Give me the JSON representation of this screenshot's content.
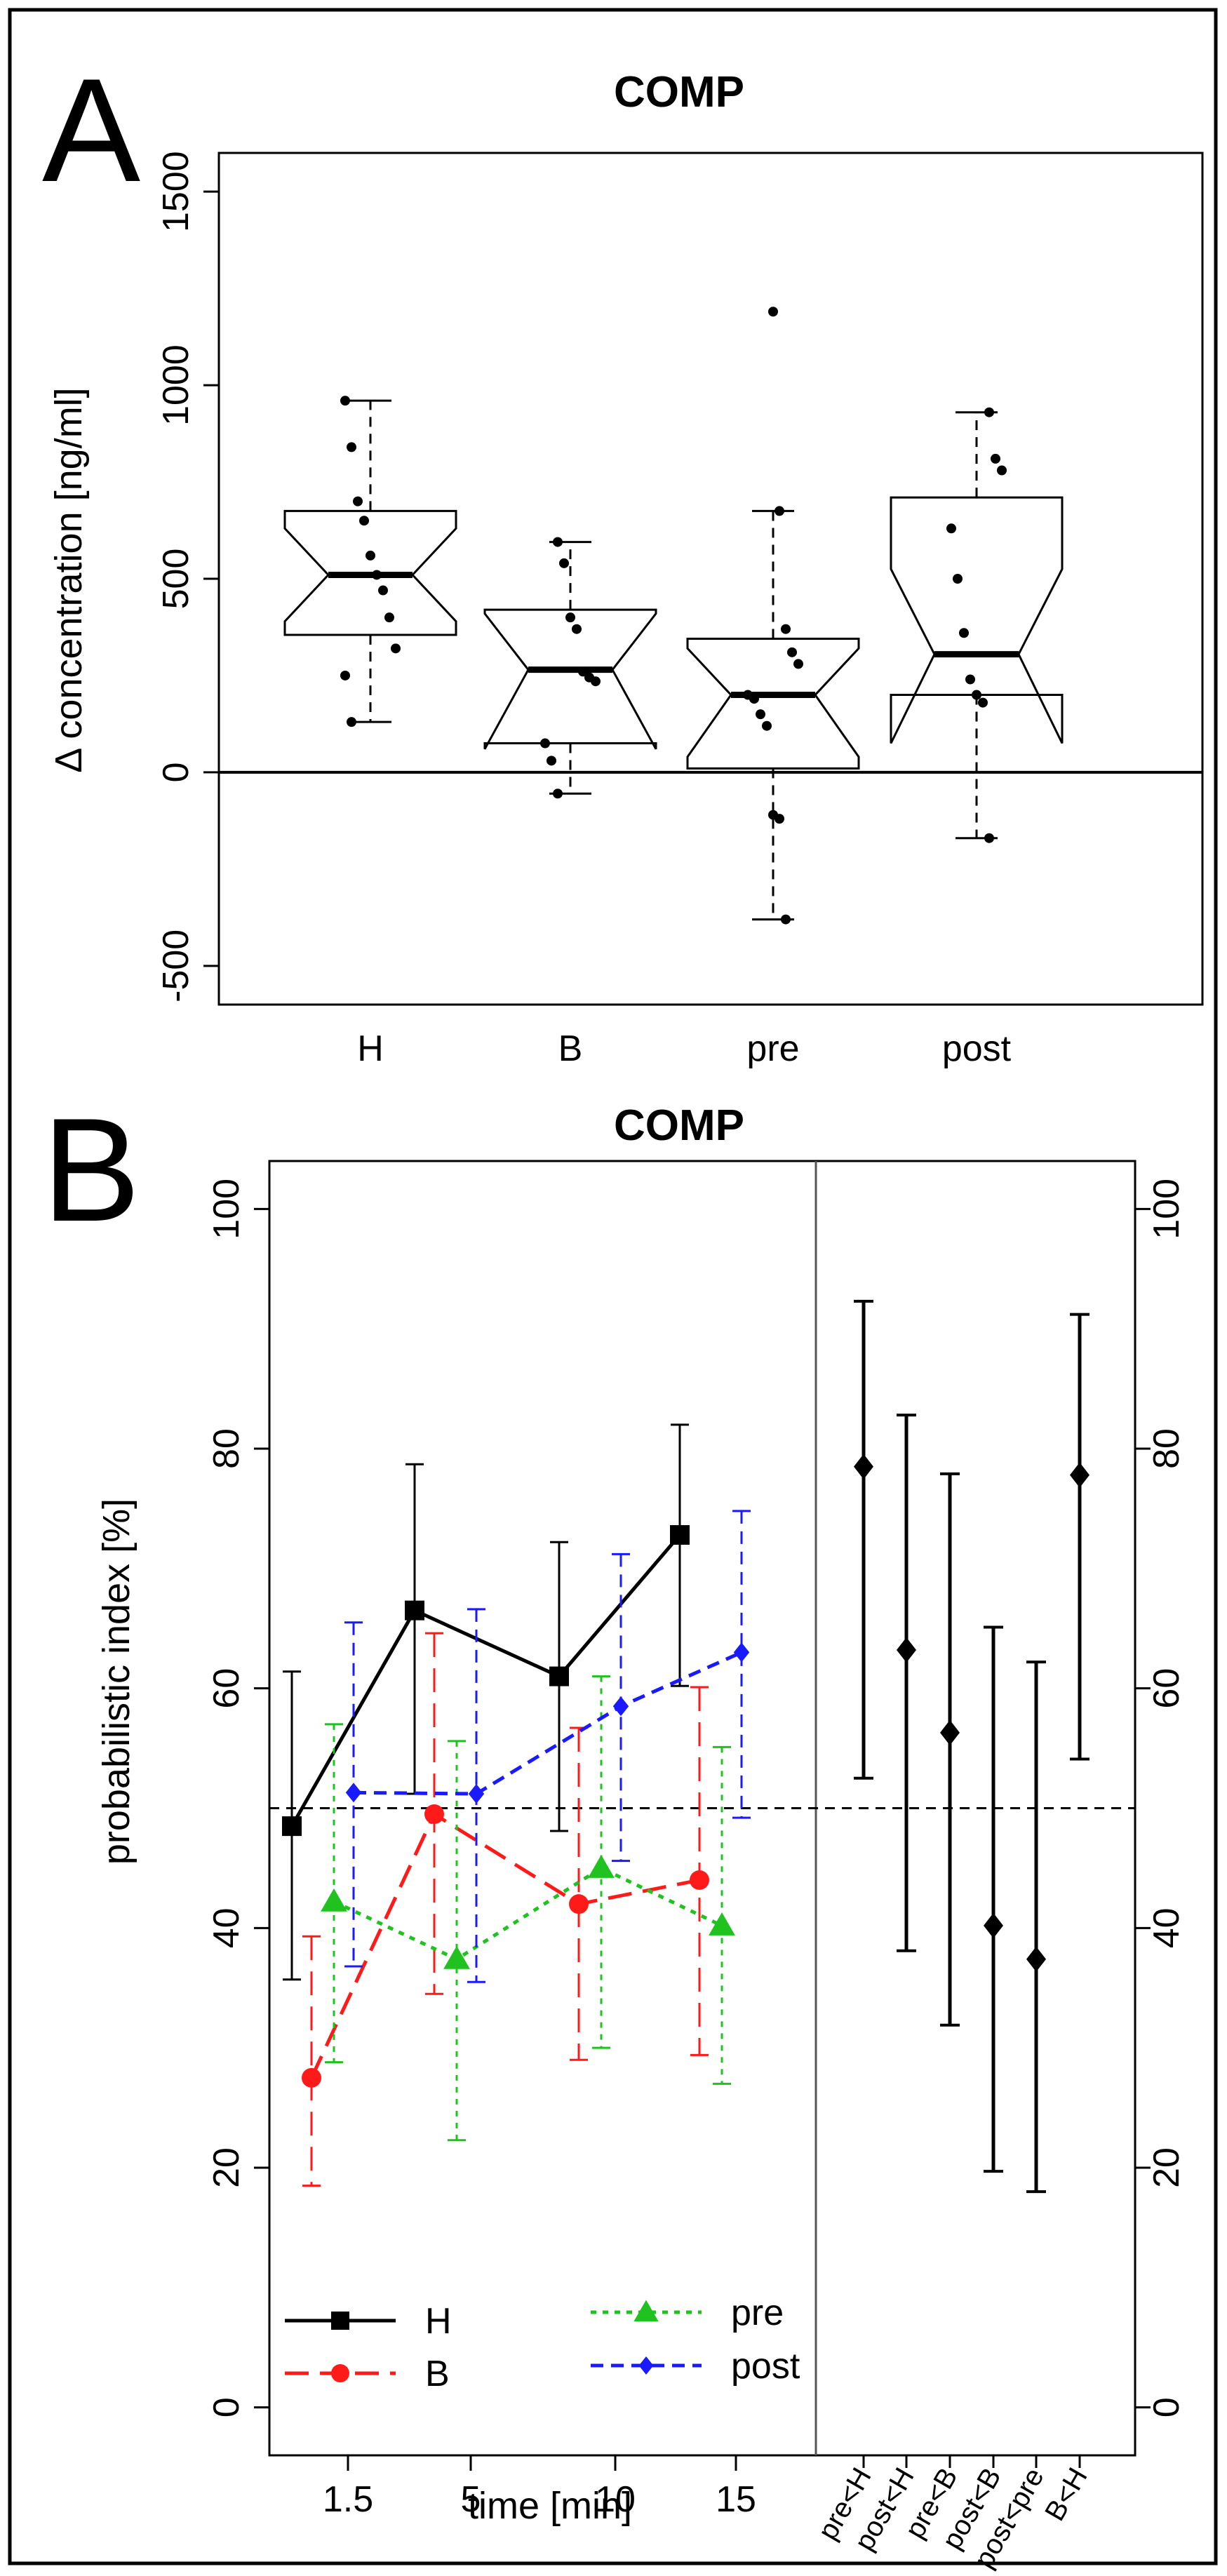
{
  "colors": {
    "H": "#000000",
    "B": "#ff1a1a",
    "pre": "#1fc21f",
    "post": "#1a1aff",
    "comparison": "#000000"
  },
  "chart_data": [
    {
      "panel": "A",
      "type": "box",
      "title": "COMP",
      "xlabel": "",
      "ylabel": "Δ concentration [ng/ml]",
      "ylim": [
        -600,
        1600
      ],
      "yticks": [
        -500,
        0,
        500,
        1000,
        1500
      ],
      "ytick_labels": [
        "-500",
        "0",
        "500",
        "1000",
        "1500"
      ],
      "zero_line": 0,
      "notched": true,
      "categories": [
        "H",
        "B",
        "pre",
        "post"
      ],
      "boxes": [
        {
          "name": "H",
          "whisker_low": 130,
          "q1": 355,
          "notch_low": 390,
          "median": 510,
          "notch_high": 630,
          "q3": 675,
          "whisker_high": 960,
          "points": [
            960,
            840,
            700,
            650,
            560,
            510,
            470,
            400,
            320,
            250,
            130
          ]
        },
        {
          "name": "B",
          "whisker_low": -55,
          "q1": 75,
          "notch_low": 60,
          "median": 265,
          "notch_high": 410,
          "q3": 420,
          "whisker_high": 595,
          "points": [
            595,
            540,
            400,
            370,
            260,
            245,
            235,
            75,
            30,
            -55
          ]
        },
        {
          "name": "pre",
          "whisker_low": -380,
          "q1": 10,
          "notch_low": 40,
          "median": 200,
          "notch_high": 320,
          "q3": 345,
          "whisker_high": 675,
          "points": [
            1190,
            675,
            370,
            310,
            280,
            200,
            190,
            150,
            120,
            -110,
            -120,
            -380
          ]
        },
        {
          "name": "post",
          "whisker_low": -170,
          "q1": 200,
          "notch_low": 75,
          "median": 305,
          "notch_high": 525,
          "q3": 710,
          "whisker_high": 930,
          "points": [
            930,
            810,
            780,
            630,
            500,
            360,
            240,
            200,
            180,
            -170
          ]
        }
      ]
    },
    {
      "panel": "B",
      "type": "line",
      "title": "COMP",
      "xlabel": "time [min]",
      "ylabel": "probabilistic index [%]",
      "ylim": [
        -4,
        104
      ],
      "yticks": [
        0,
        20,
        40,
        60,
        80,
        100
      ],
      "ytick_labels": [
        "0",
        "20",
        "40",
        "60",
        "80",
        "100"
      ],
      "reference_line": 50,
      "x": [
        "1.5",
        "5",
        "10",
        "15"
      ],
      "series": [
        {
          "name": "H",
          "line": "solid",
          "marker": "square",
          "values": [
            48.5,
            66.5,
            61,
            72.8
          ],
          "lower": [
            35.7,
            51.2,
            48.1,
            60.2
          ],
          "upper": [
            61.4,
            78.7,
            72.2,
            82
          ]
        },
        {
          "name": "B",
          "line": "longdash",
          "marker": "circle",
          "values": [
            27.5,
            49.5,
            42,
            44
          ],
          "lower": [
            18.5,
            34.5,
            29,
            29.4
          ],
          "upper": [
            39.3,
            64.6,
            56.7,
            60.1
          ]
        },
        {
          "name": "pre",
          "line": "dotted",
          "marker": "triangle",
          "values": [
            42.2,
            37.4,
            45,
            40.2
          ],
          "lower": [
            28.8,
            22.3,
            30,
            27
          ],
          "upper": [
            57,
            55.6,
            61,
            55.1
          ]
        },
        {
          "name": "post",
          "line": "dashed",
          "marker": "diamond",
          "values": [
            51.3,
            51.2,
            58.5,
            63
          ],
          "lower": [
            36.8,
            35.5,
            45.6,
            49.2
          ],
          "upper": [
            65.5,
            66.6,
            71.2,
            74.8
          ]
        }
      ],
      "comparisons": [
        {
          "label": "pre<H",
          "value": 78.5,
          "lower": 52.5,
          "upper": 92.3
        },
        {
          "label": "post<H",
          "value": 63.2,
          "lower": 38.1,
          "upper": 82.8
        },
        {
          "label": "pre<B",
          "value": 56.3,
          "lower": 31.9,
          "upper": 77.9
        },
        {
          "label": "post<B",
          "value": 40.2,
          "lower": 19.7,
          "upper": 65.1
        },
        {
          "label": "post<pre",
          "value": 37.4,
          "lower": 18,
          "upper": 62.2
        },
        {
          "label": "B<H",
          "value": 77.8,
          "lower": 54.1,
          "upper": 91.2
        }
      ],
      "legend": {
        "position": "bottom-left",
        "entries": [
          "H",
          "B",
          "pre",
          "post"
        ]
      }
    }
  ],
  "panels": {
    "a_letter": "A",
    "b_letter": "B"
  }
}
